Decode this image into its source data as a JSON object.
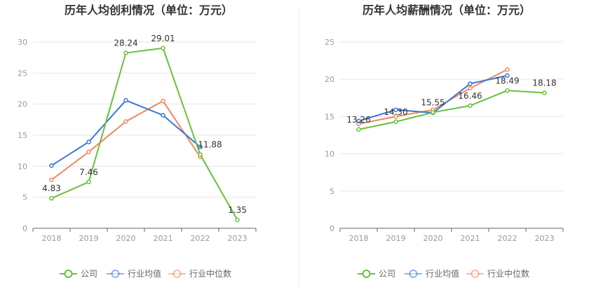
{
  "charts": [
    {
      "type": "line",
      "title": "历年人均创利情况（单位：万元）",
      "categories": [
        "2018",
        "2019",
        "2020",
        "2021",
        "2022",
        "2023"
      ],
      "ylim": [
        0,
        30
      ],
      "yticks": [
        0,
        5,
        10,
        15,
        20,
        25,
        30
      ],
      "series": [
        {
          "name": "公司",
          "color": "#67c23a",
          "values": [
            4.83,
            7.46,
            28.24,
            29.01,
            11.88,
            1.35
          ],
          "labels": [
            "4.83",
            "7.46",
            "28.24",
            "29.01",
            "11.88",
            "1.35"
          ]
        },
        {
          "name": "行业均值",
          "color": "#3a76d8",
          "values": [
            10.1,
            13.9,
            20.6,
            18.2,
            13.1,
            null
          ]
        },
        {
          "name": "行业中位数",
          "color": "#ef8a5c",
          "values": [
            7.8,
            12.3,
            17.2,
            20.5,
            11.5,
            null
          ]
        }
      ]
    },
    {
      "type": "line",
      "title": "历年人均薪酬情况（单位：万元）",
      "categories": [
        "2018",
        "2019",
        "2020",
        "2021",
        "2022",
        "2023"
      ],
      "ylim": [
        0,
        25
      ],
      "yticks": [
        0,
        5,
        10,
        15,
        20,
        25
      ],
      "series": [
        {
          "name": "公司",
          "color": "#67c23a",
          "values": [
            13.26,
            14.3,
            15.55,
            16.46,
            18.49,
            18.18
          ],
          "labels": [
            "13.26",
            "14.30",
            "15.55",
            "16.46",
            "18.49",
            "18.18"
          ]
        },
        {
          "name": "行业均值",
          "color": "#3a76d8",
          "values": [
            14.4,
            15.9,
            15.5,
            19.4,
            20.5,
            null
          ]
        },
        {
          "name": "行业中位数",
          "color": "#ef8a5c",
          "values": [
            14.0,
            15.0,
            15.9,
            18.8,
            21.3,
            null
          ]
        }
      ]
    }
  ],
  "legend": [
    "公司",
    "行业均值",
    "行业中位数"
  ]
}
